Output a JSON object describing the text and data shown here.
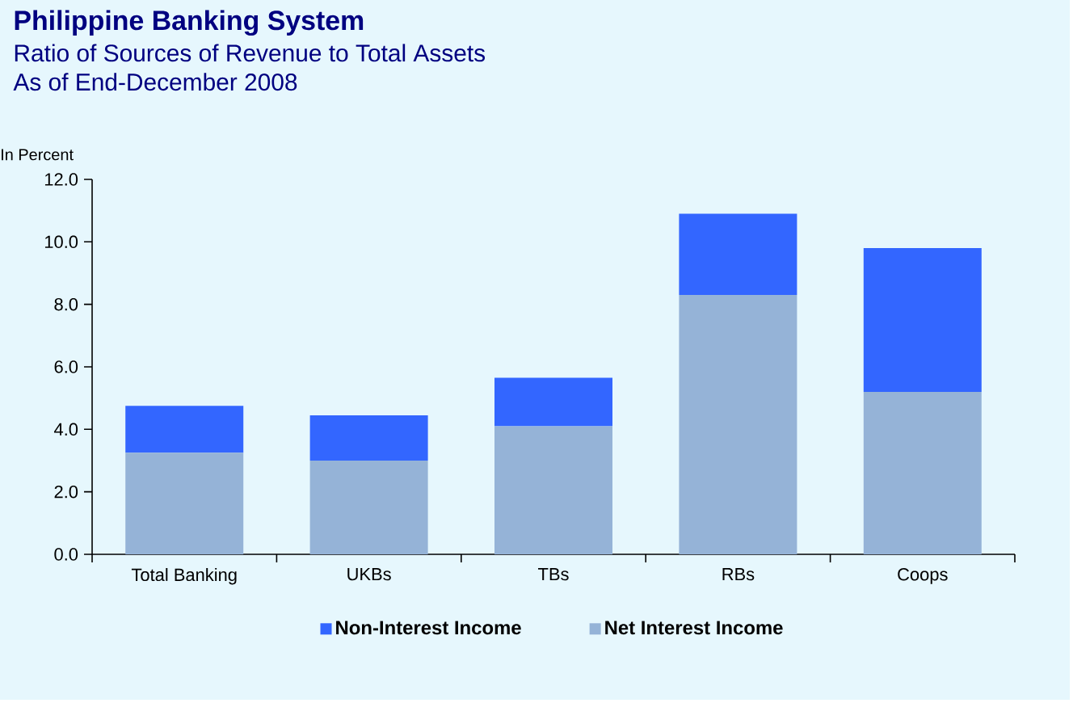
{
  "chart_data": {
    "type": "bar",
    "stacked": true,
    "title": "Philippine Banking System",
    "subtitle": "Ratio of Sources of Revenue to Total Assets\nAs of End-December 2008",
    "ylabel": "In Percent",
    "categories": [
      "Total Banking",
      "UKBs",
      "TBs",
      "RBs",
      "Coops"
    ],
    "series": [
      {
        "name": "Net Interest Income",
        "color": "#95b3d7",
        "values": [
          3.25,
          3.0,
          4.1,
          8.3,
          5.2
        ]
      },
      {
        "name": "Non-Interest Income",
        "color": "#3366ff",
        "values": [
          1.5,
          1.45,
          1.55,
          2.6,
          4.6
        ]
      }
    ],
    "ylim": [
      0,
      12
    ],
    "yticks": [
      {
        "value": 0,
        "label": "0.0"
      },
      {
        "value": 2,
        "label": "2.0"
      },
      {
        "value": 4,
        "label": "4.0"
      },
      {
        "value": 6,
        "label": "6.0"
      },
      {
        "value": 8,
        "label": "8.0"
      },
      {
        "value": 10,
        "label": "10.0"
      },
      {
        "value": 12,
        "label": "12.0"
      }
    ],
    "legend": "bottom"
  }
}
